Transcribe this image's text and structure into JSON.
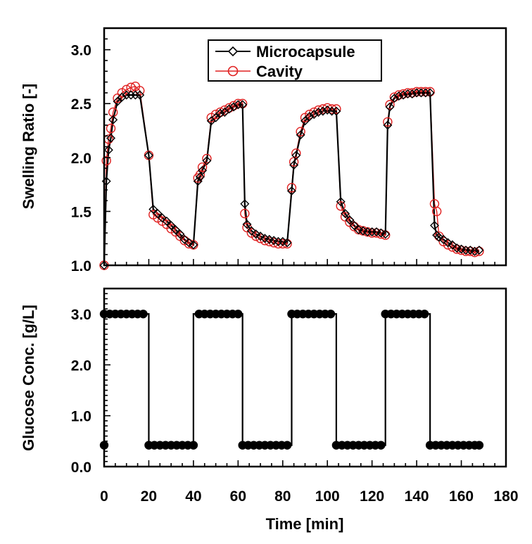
{
  "chart_data": [
    {
      "type": "line",
      "title": "",
      "xlabel": "",
      "ylabel": "Swelling Ratio [-]",
      "xlim": [
        0,
        180
      ],
      "ylim": [
        1.0,
        3.2
      ],
      "yticks": [
        "1.0",
        "1.5",
        "2.0",
        "2.5",
        "3.0"
      ],
      "grid": false,
      "legend": "top-center",
      "series": [
        {
          "name": "Microcapsule",
          "color": "#000000",
          "marker": "diamond",
          "x": [
            0,
            1,
            2,
            3,
            4,
            6,
            8,
            10,
            12,
            14,
            16,
            20,
            22,
            24,
            26,
            28,
            30,
            32,
            34,
            36,
            38,
            40,
            42,
            43,
            44,
            46,
            48,
            50,
            52,
            54,
            56,
            58,
            60,
            62,
            63,
            64,
            66,
            68,
            70,
            72,
            74,
            76,
            78,
            80,
            82,
            84,
            85,
            86,
            88,
            90,
            92,
            94,
            96,
            98,
            100,
            102,
            104,
            106,
            108,
            110,
            112,
            114,
            116,
            118,
            120,
            122,
            124,
            126,
            127,
            128,
            130,
            132,
            134,
            136,
            138,
            140,
            142,
            144,
            146,
            148,
            149,
            150,
            152,
            154,
            156,
            158,
            160,
            162,
            164,
            166,
            168
          ],
          "y": [
            1.0,
            1.78,
            2.07,
            2.18,
            2.35,
            2.52,
            2.56,
            2.58,
            2.58,
            2.58,
            2.58,
            2.02,
            1.52,
            1.48,
            1.44,
            1.41,
            1.37,
            1.33,
            1.29,
            1.24,
            1.21,
            1.19,
            1.78,
            1.82,
            1.88,
            1.97,
            2.34,
            2.37,
            2.41,
            2.42,
            2.45,
            2.47,
            2.49,
            2.49,
            1.57,
            1.38,
            1.32,
            1.29,
            1.27,
            1.25,
            1.24,
            1.23,
            1.22,
            1.22,
            1.21,
            1.69,
            1.93,
            2.02,
            2.21,
            2.34,
            2.38,
            2.4,
            2.42,
            2.43,
            2.44,
            2.43,
            2.43,
            1.59,
            1.48,
            1.42,
            1.37,
            1.33,
            1.32,
            1.31,
            1.31,
            1.31,
            1.3,
            1.29,
            2.3,
            2.47,
            2.55,
            2.57,
            2.58,
            2.59,
            2.59,
            2.6,
            2.6,
            2.6,
            2.6,
            1.37,
            1.28,
            1.26,
            1.24,
            1.21,
            1.19,
            1.16,
            1.15,
            1.14,
            1.14,
            1.13,
            1.14
          ]
        },
        {
          "name": "Cavity",
          "color": "#e02020",
          "marker": "circle",
          "x": [
            0,
            1,
            2,
            3,
            4,
            6,
            8,
            10,
            12,
            14,
            16,
            20,
            22,
            24,
            26,
            28,
            30,
            32,
            34,
            36,
            38,
            40,
            42,
            43,
            44,
            46,
            48,
            50,
            52,
            54,
            56,
            58,
            60,
            62,
            63,
            64,
            66,
            68,
            70,
            72,
            74,
            76,
            78,
            80,
            82,
            84,
            85,
            86,
            88,
            90,
            92,
            94,
            96,
            98,
            100,
            102,
            104,
            106,
            108,
            110,
            112,
            114,
            116,
            118,
            120,
            122,
            124,
            126,
            127,
            128,
            130,
            132,
            134,
            136,
            138,
            140,
            142,
            144,
            146,
            148,
            149,
            150,
            152,
            154,
            156,
            158,
            160,
            162,
            164,
            166,
            168
          ],
          "y": [
            1.0,
            1.97,
            2.17,
            2.27,
            2.42,
            2.55,
            2.6,
            2.63,
            2.65,
            2.66,
            2.62,
            2.02,
            1.47,
            1.44,
            1.41,
            1.38,
            1.34,
            1.31,
            1.27,
            1.23,
            1.2,
            1.19,
            1.81,
            1.84,
            1.91,
            1.99,
            2.37,
            2.4,
            2.42,
            2.44,
            2.46,
            2.48,
            2.5,
            2.5,
            1.48,
            1.35,
            1.3,
            1.27,
            1.25,
            1.23,
            1.22,
            1.21,
            1.2,
            1.2,
            1.2,
            1.72,
            1.96,
            2.04,
            2.24,
            2.37,
            2.4,
            2.42,
            2.44,
            2.45,
            2.46,
            2.45,
            2.45,
            1.55,
            1.45,
            1.4,
            1.36,
            1.33,
            1.32,
            1.31,
            1.3,
            1.3,
            1.29,
            1.28,
            2.33,
            2.49,
            2.56,
            2.58,
            2.59,
            2.6,
            2.6,
            2.61,
            2.61,
            2.61,
            2.61,
            1.57,
            1.5,
            1.27,
            1.22,
            1.19,
            1.17,
            1.15,
            1.14,
            1.13,
            1.13,
            1.12,
            1.13
          ]
        }
      ]
    },
    {
      "type": "line",
      "title": "",
      "xlabel": "Time [min]",
      "ylabel": "Glucose Conc. [g/L]",
      "xlim": [
        0,
        180
      ],
      "xticks": [
        "0",
        "20",
        "40",
        "60",
        "80",
        "100",
        "120",
        "140",
        "160",
        "180"
      ],
      "ylim": [
        0.0,
        3.5
      ],
      "yticks": [
        "0.0",
        "1.0",
        "2.0",
        "3.0"
      ],
      "grid": false,
      "series": [
        {
          "color": "#000000",
          "marker": "filled-circle",
          "x": [
            0,
            0,
            2.5,
            5,
            7.5,
            10,
            12.5,
            15,
            17.5,
            20,
            20,
            22.5,
            25,
            27.5,
            30,
            32.5,
            35,
            37.5,
            40,
            40,
            42.5,
            45,
            47.5,
            50,
            52.5,
            55,
            57.5,
            60,
            62,
            62,
            64.5,
            67,
            69.5,
            72,
            74.5,
            77,
            79.5,
            82,
            84,
            84,
            86.5,
            89,
            91.5,
            94,
            96.5,
            99,
            101.5,
            104,
            104,
            106.5,
            109,
            111.5,
            114,
            116.5,
            119,
            121.5,
            124,
            126,
            126,
            128.5,
            131,
            133.5,
            136,
            138.5,
            141,
            143.5,
            146,
            146,
            148.5,
            151,
            153.5,
            156,
            158.5,
            161,
            163.5,
            166,
            168
          ],
          "y": [
            0.42,
            3.0,
            3.0,
            3.0,
            3.0,
            3.0,
            3.0,
            3.0,
            3.0,
            3.0,
            0.42,
            0.42,
            0.42,
            0.42,
            0.42,
            0.42,
            0.42,
            0.42,
            0.42,
            3.0,
            3.0,
            3.0,
            3.0,
            3.0,
            3.0,
            3.0,
            3.0,
            3.0,
            3.0,
            0.42,
            0.42,
            0.42,
            0.42,
            0.42,
            0.42,
            0.42,
            0.42,
            0.42,
            0.42,
            3.0,
            3.0,
            3.0,
            3.0,
            3.0,
            3.0,
            3.0,
            3.0,
            3.0,
            0.42,
            0.42,
            0.42,
            0.42,
            0.42,
            0.42,
            0.42,
            0.42,
            0.42,
            0.42,
            3.0,
            3.0,
            3.0,
            3.0,
            3.0,
            3.0,
            3.0,
            3.0,
            3.0,
            0.42,
            0.42,
            0.42,
            0.42,
            0.42,
            0.42,
            0.42,
            0.42,
            0.42,
            0.42
          ],
          "marker_x": [
            0,
            0,
            2.5,
            5,
            7.5,
            10,
            12.5,
            15,
            17.5,
            20,
            22.5,
            25,
            27.5,
            30,
            32.5,
            35,
            37.5,
            40,
            42.5,
            45,
            47.5,
            50,
            52.5,
            55,
            57.5,
            60,
            62,
            64.5,
            67,
            69.5,
            72,
            74.5,
            77,
            79.5,
            82,
            84,
            86.5,
            89,
            91.5,
            94,
            96.5,
            99,
            101.5,
            104,
            106.5,
            109,
            111.5,
            114,
            116.5,
            119,
            121.5,
            124,
            126,
            128.5,
            131,
            133.5,
            136,
            138.5,
            141,
            143.5,
            146,
            148.5,
            151,
            153.5,
            156,
            158.5,
            161,
            163.5,
            166,
            168
          ],
          "marker_y": [
            0.42,
            3.0,
            3.0,
            3.0,
            3.0,
            3.0,
            3.0,
            3.0,
            3.0,
            0.42,
            0.42,
            0.42,
            0.42,
            0.42,
            0.42,
            0.42,
            0.42,
            0.42,
            3.0,
            3.0,
            3.0,
            3.0,
            3.0,
            3.0,
            3.0,
            3.0,
            0.42,
            0.42,
            0.42,
            0.42,
            0.42,
            0.42,
            0.42,
            0.42,
            0.42,
            3.0,
            3.0,
            3.0,
            3.0,
            3.0,
            3.0,
            3.0,
            3.0,
            0.42,
            0.42,
            0.42,
            0.42,
            0.42,
            0.42,
            0.42,
            0.42,
            0.42,
            3.0,
            3.0,
            3.0,
            3.0,
            3.0,
            3.0,
            3.0,
            3.0,
            0.42,
            0.42,
            0.42,
            0.42,
            0.42,
            0.42,
            0.42,
            0.42,
            0.42,
            0.42
          ]
        }
      ]
    }
  ]
}
